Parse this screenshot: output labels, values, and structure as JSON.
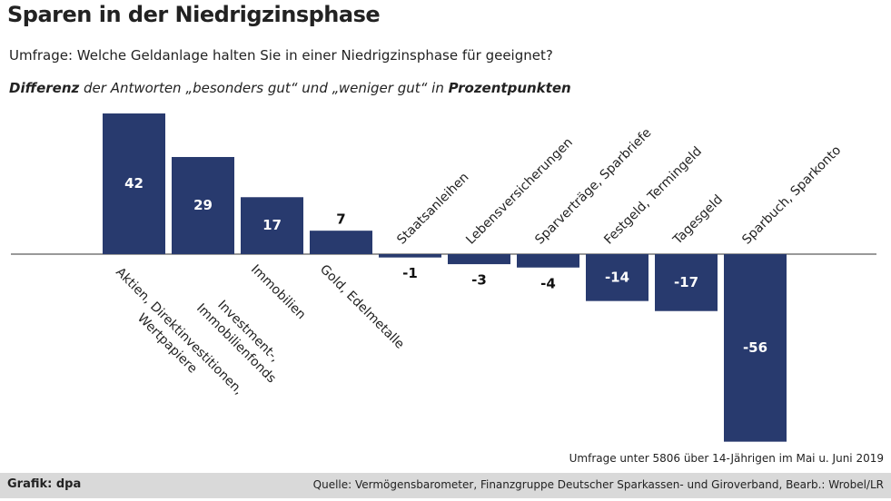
{
  "chart_data": {
    "type": "bar",
    "title": "Sparen in der Niedrigzinsphase",
    "subtitle": "Umfrage: Welche Geldanlage halten Sie in einer Niedrigzinsphase für geeignet?",
    "description": [
      {
        "text": "Differenz",
        "bold": true
      },
      {
        "text": " der Antworten „besonders gut“ und „weniger gut“ in ",
        "bold": false
      },
      {
        "text": "Prozentpunkten",
        "bold": true
      }
    ],
    "categories": [
      "Aktien, Direktinvestitionen, Wertpapiere",
      "Investment-, Immobilienfonds",
      "Immobilien",
      "Gold, Edelmetalle",
      "Staatsanleihen",
      "Lebensversicherungen",
      "Sparverträge, Sparbriefe",
      "Festgeld, Termingeld",
      "Tagesgeld",
      "Sparbuch, Sparkonto"
    ],
    "values": [
      42,
      29,
      17,
      7,
      -1,
      -3,
      -4,
      -14,
      -17,
      -56
    ],
    "color": "#283a6e",
    "note": "Umfrage unter 5806 über 14-Jährigen im Mai u. Juni 2019",
    "credit": "Grafik: dpa",
    "source": "Quelle: Vermögensbarometer, Finanzgruppe Deutscher Sparkassen- und Giroverband, Bearb.: Wrobel/LR"
  }
}
